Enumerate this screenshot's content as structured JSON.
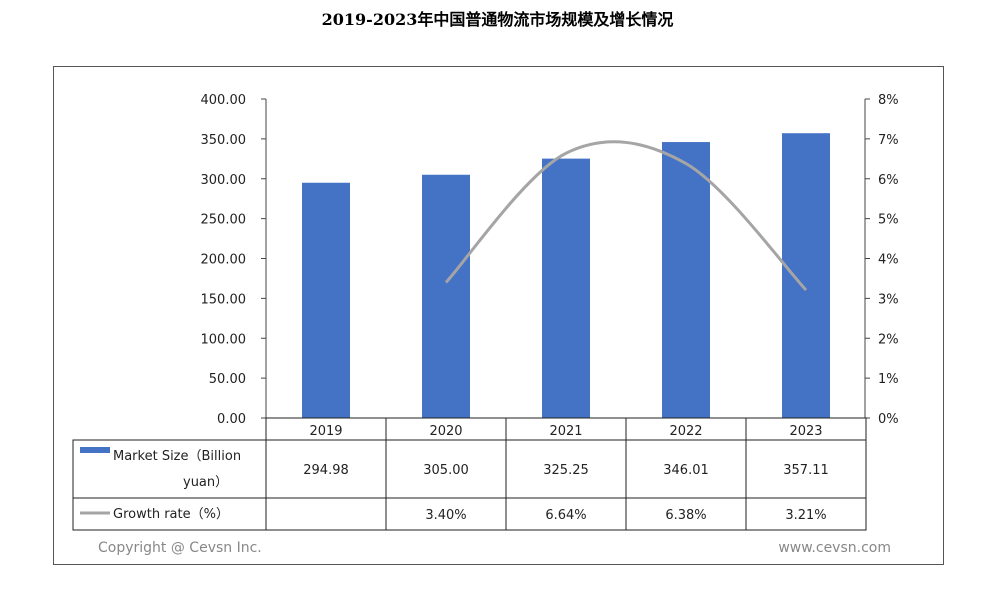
{
  "chart_data": {
    "type": "bar+line",
    "title": "2019-2023年中国普通物流市场规模及增长情况",
    "categories": [
      "2019",
      "2020",
      "2021",
      "2022",
      "2023"
    ],
    "series": [
      {
        "name": "Market Size（Billion yuan）",
        "type": "bar",
        "axis": "left",
        "values": [
          294.98,
          305.0,
          325.25,
          346.01,
          357.11
        ],
        "labels": [
          "294.98",
          "305.00",
          "325.25",
          "346.01",
          "357.11"
        ],
        "color": "#4472C4"
      },
      {
        "name": "Growth rate（%）",
        "type": "line",
        "axis": "right",
        "values": [
          null,
          3.4,
          6.64,
          6.38,
          3.21
        ],
        "labels": [
          "",
          "3.40%",
          "6.64%",
          "6.38%",
          "3.21%"
        ],
        "color": "#A5A5A5"
      }
    ],
    "left_axis": {
      "ylim": [
        0,
        400
      ],
      "ticks": [
        "0.00",
        "50.00",
        "100.00",
        "150.00",
        "200.00",
        "250.00",
        "300.00",
        "350.00",
        "400.00"
      ]
    },
    "right_axis": {
      "ylim": [
        0,
        8
      ],
      "ticks": [
        "0%",
        "1%",
        "2%",
        "3%",
        "4%",
        "5%",
        "6%",
        "7%",
        "8%"
      ]
    },
    "legend_placement": "data-table"
  },
  "footer": {
    "copyright": "Copyright @ Cevsn Inc.",
    "website": "www.cevsn.com"
  }
}
